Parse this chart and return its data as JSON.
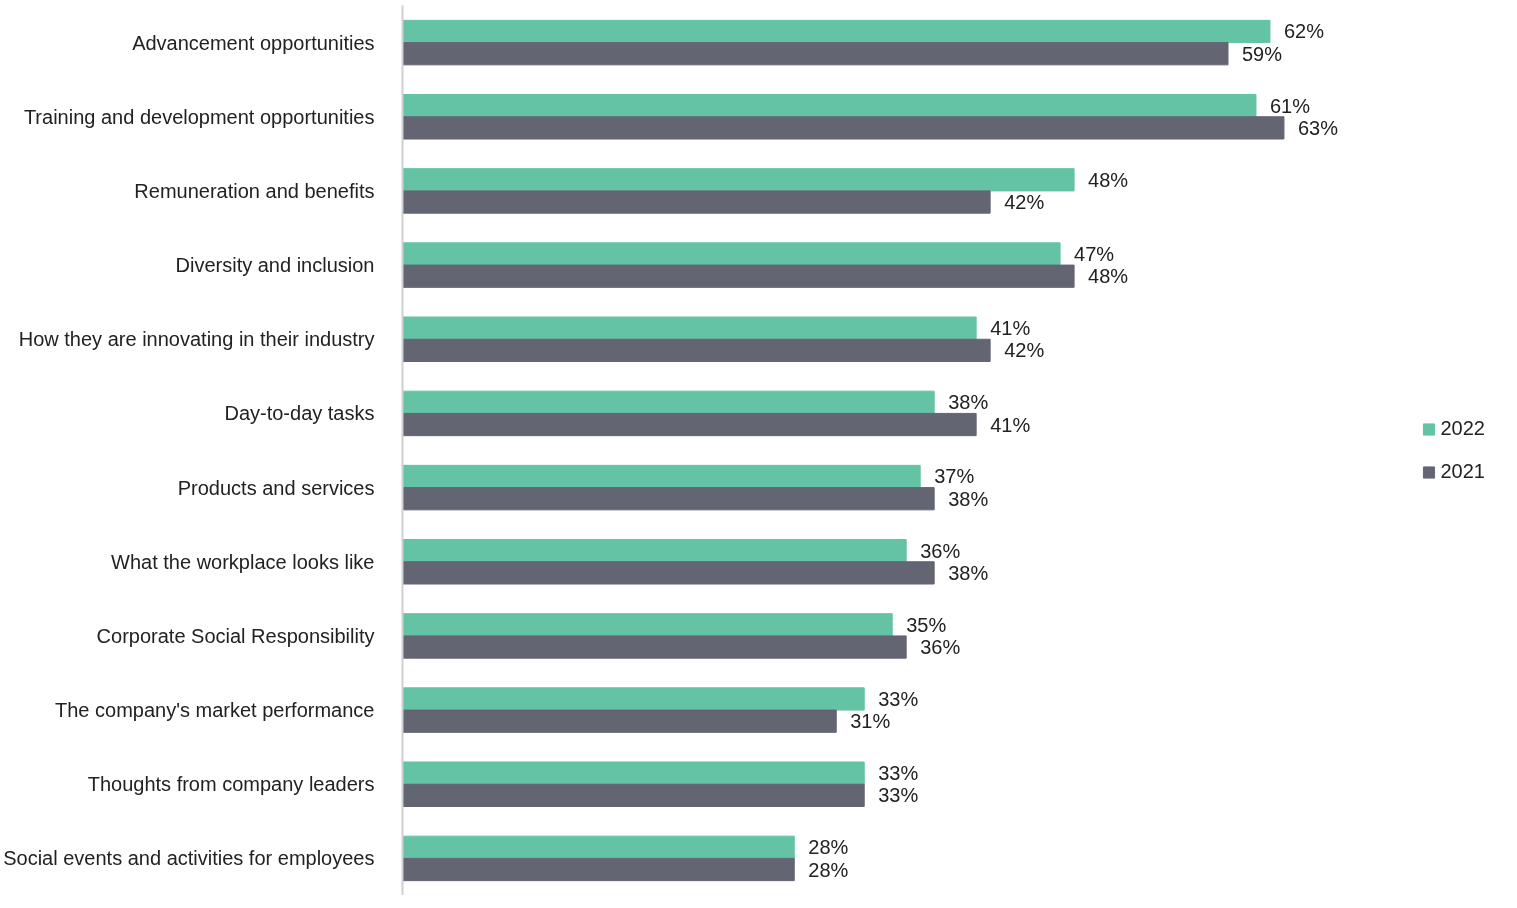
{
  "chart_data": {
    "type": "bar",
    "orientation": "horizontal",
    "categories": [
      "Advancement opportunities",
      "Training and development opportunities",
      "Remuneration and benefits",
      "Diversity and inclusion",
      "How they are innovating in their industry",
      "Day-to-day tasks",
      "Products and services",
      "What the workplace looks like",
      "Corporate Social Responsibility",
      "The company's market performance",
      "Thoughts from company leaders",
      "Social events and activities for employees"
    ],
    "series": [
      {
        "name": "2022",
        "color": "#64c3a4",
        "values": [
          62,
          61,
          48,
          47,
          41,
          38,
          37,
          36,
          35,
          33,
          33,
          28
        ],
        "value_labels": [
          "62%",
          "61%",
          "48%",
          "47%",
          "41%",
          "38%",
          "37%",
          "36%",
          "35%",
          "33%",
          "33%",
          "28%"
        ]
      },
      {
        "name": "2021",
        "color": "#636573",
        "values": [
          59,
          63,
          42,
          48,
          42,
          41,
          38,
          38,
          36,
          31,
          33,
          28
        ],
        "value_labels": [
          "59%",
          "63%",
          "42%",
          "48%",
          "42%",
          "41%",
          "38%",
          "38%",
          "36%",
          "31%",
          "33%",
          "28%"
        ]
      }
    ],
    "legend": "right",
    "grid": false,
    "tick_labels": "y"
  }
}
